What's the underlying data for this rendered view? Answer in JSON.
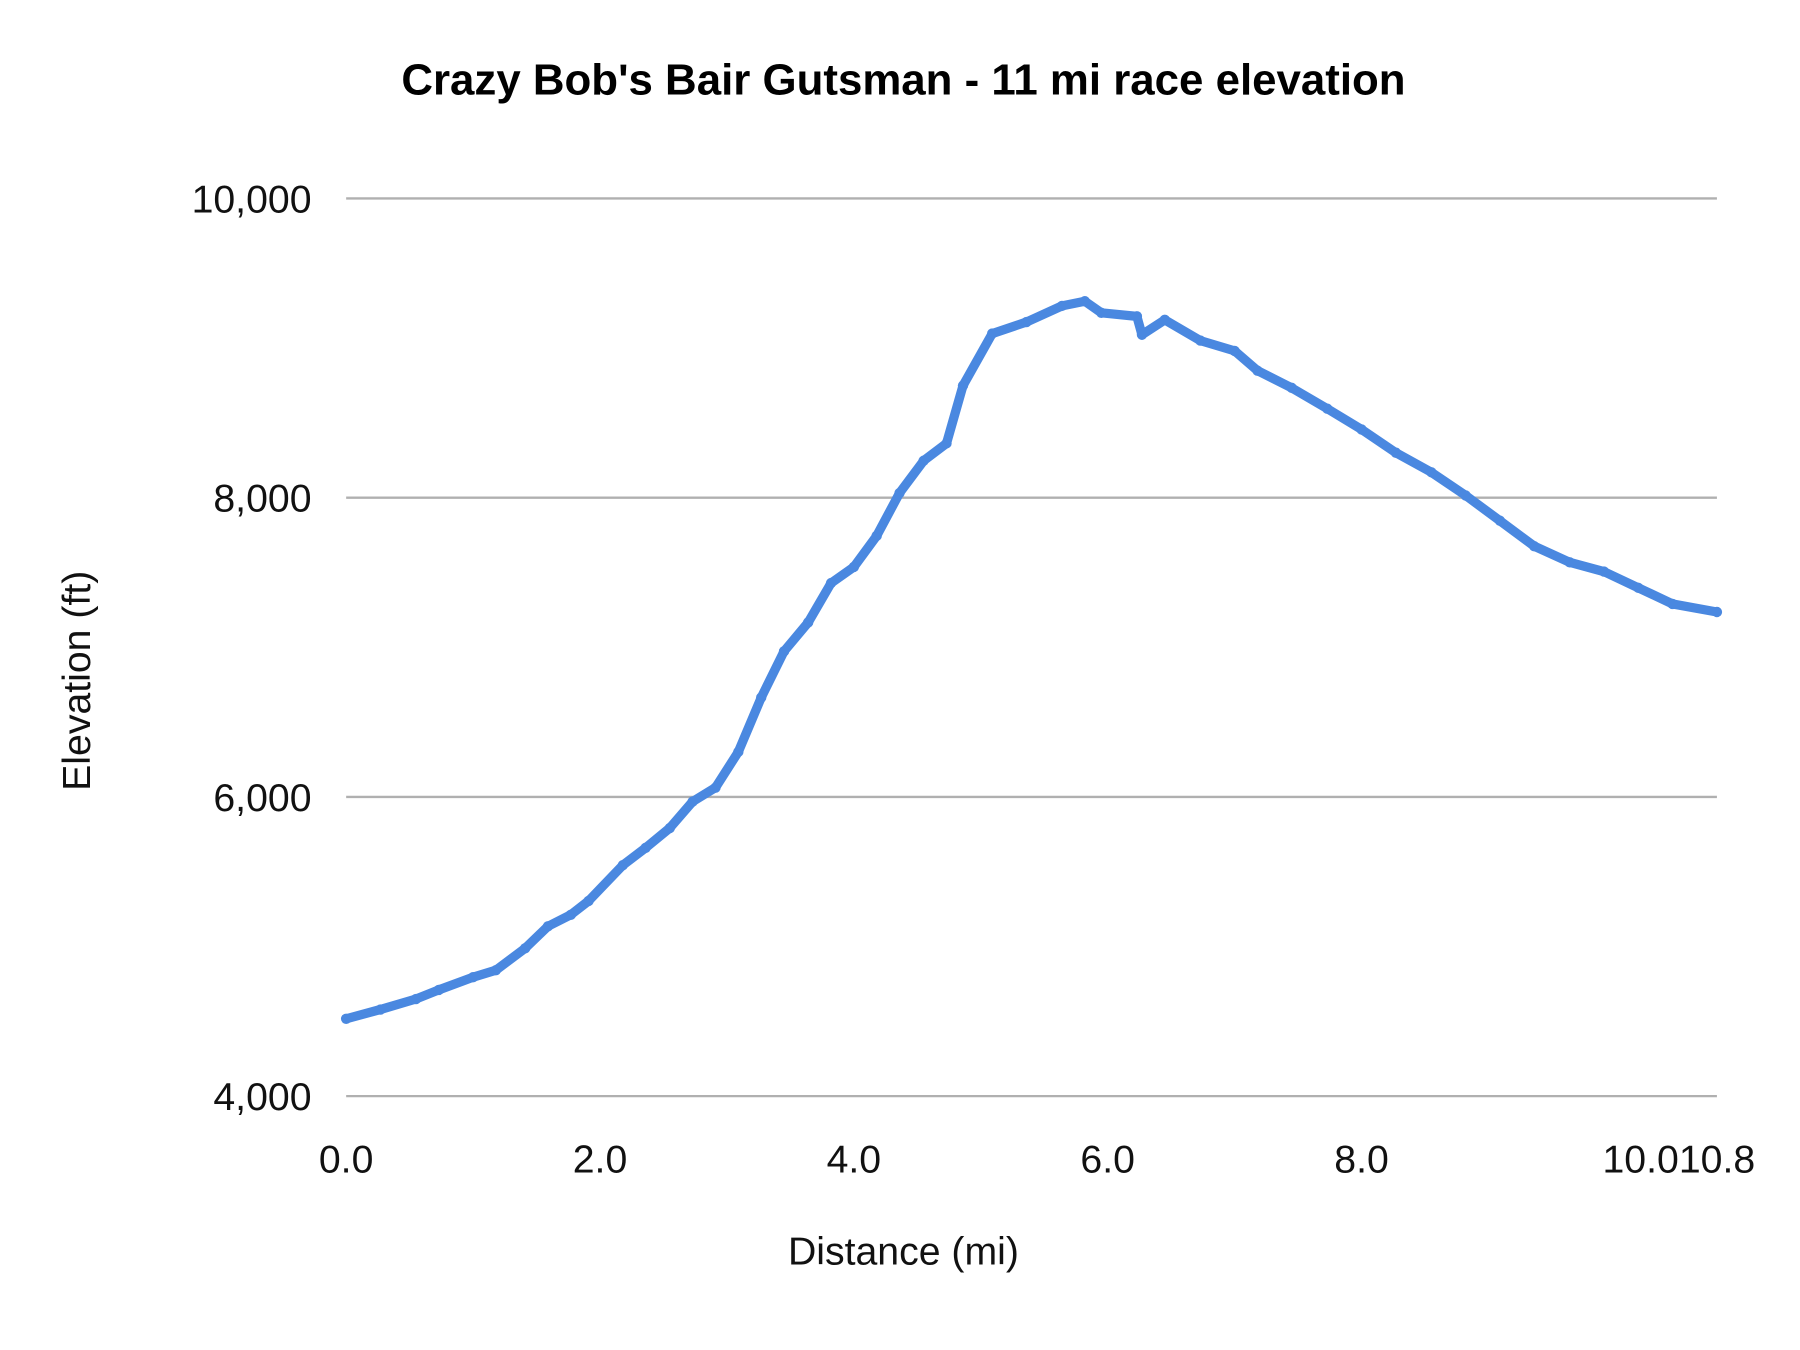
{
  "chart_data": {
    "type": "line",
    "title": "Crazy Bob's Bair Gutsman - 11 mi race elevation",
    "xlabel": "Distance (mi)",
    "ylabel": "Elevation (ft)",
    "xlim": [
      0,
      10.8
    ],
    "ylim": [
      4000,
      10000
    ],
    "x_ticks": [
      "0.0",
      "2.0",
      "4.0",
      "6.0",
      "8.0",
      "10.0",
      "10.8"
    ],
    "x_tick_values": [
      0,
      2,
      4,
      6,
      8,
      10,
      10.8
    ],
    "y_ticks": [
      "4,000",
      "6,000",
      "8,000",
      "10,000"
    ],
    "y_tick_values": [
      4000,
      6000,
      8000,
      10000
    ],
    "grid": "horizontal",
    "legend": "none",
    "series_color": "#4a88e0",
    "x": [
      0,
      0.27,
      0.55,
      0.73,
      1.0,
      1.18,
      1.41,
      1.59,
      1.77,
      1.91,
      2.18,
      2.36,
      2.55,
      2.73,
      2.91,
      3.09,
      3.27,
      3.45,
      3.64,
      3.82,
      4.0,
      4.18,
      4.36,
      4.55,
      4.73,
      4.86,
      5.09,
      5.36,
      5.64,
      5.82,
      5.95,
      6.23,
      6.27,
      6.45,
      6.73,
      7.0,
      7.18,
      7.45,
      7.73,
      8.0,
      8.27,
      8.55,
      8.82,
      9.09,
      9.36,
      9.64,
      9.91,
      10.18,
      10.45,
      10.8
    ],
    "values": [
      4517,
      4579,
      4649,
      4710,
      4795,
      4842,
      4988,
      5135,
      5212,
      5305,
      5544,
      5660,
      5792,
      5969,
      6062,
      6301,
      6664,
      6973,
      7166,
      7429,
      7537,
      7745,
      8031,
      8247,
      8363,
      8749,
      9097,
      9174,
      9282,
      9313,
      9236,
      9212,
      9089,
      9189,
      9050,
      8981,
      8849,
      8734,
      8595,
      8456,
      8301,
      8170,
      8015,
      7846,
      7676,
      7568,
      7506,
      7398,
      7290,
      7236
    ]
  }
}
